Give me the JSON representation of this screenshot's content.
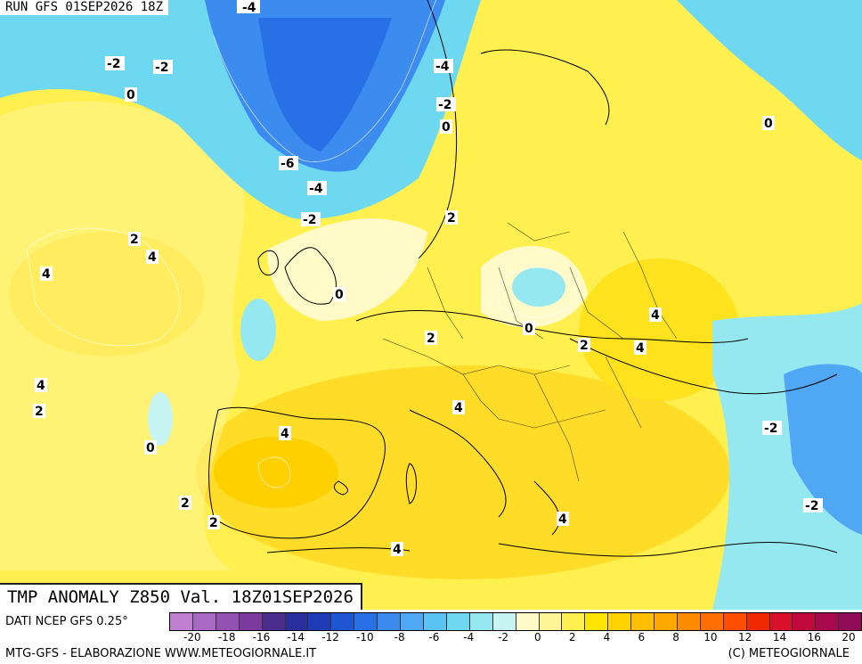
{
  "run_label": "RUN GFS 01SEP2026 18Z",
  "title": "TMP ANOMALY Z850 Val. 18Z01SEP2026",
  "footer": {
    "dati": "DATI NCEP GFS 0.25°",
    "credit": "MTG-GFS - ELABORAZIONE WWW.METEOGIORNALE.IT",
    "copyright": "(C) METEOGIORNALE"
  },
  "legend": {
    "colors": [
      "#c07fd0",
      "#a968c4",
      "#9250b0",
      "#7a3b9c",
      "#4a2c8c",
      "#2a2f9e",
      "#1e3cb8",
      "#1e55d2",
      "#2870e6",
      "#3c8cf0",
      "#50a8f4",
      "#5ac3f4",
      "#6ed8f0",
      "#96e8f0",
      "#c8f4f4",
      "#fffac8",
      "#fff596",
      "#fff050",
      "#ffe600",
      "#ffd200",
      "#ffbe00",
      "#ffa800",
      "#ff8c00",
      "#ff6e00",
      "#ff4c00",
      "#f02800",
      "#d8102a",
      "#c00a3c",
      "#a8084c",
      "#900c58"
    ],
    "ticks": [
      "-20",
      "-18",
      "-16",
      "-14",
      "-12",
      "-10",
      "-8",
      "-6",
      "-4",
      "-2",
      "0",
      "2",
      "4",
      "6",
      "8",
      "10",
      "12",
      "14",
      "16",
      "20"
    ]
  },
  "map_labels": [
    "-4",
    "-2",
    "-2",
    "0",
    "-4",
    "-2",
    "0",
    "0",
    "-6",
    "-4",
    "-2",
    "2",
    "2",
    "4",
    "4",
    "0",
    "2",
    "0",
    "2",
    "4",
    "4",
    "4",
    "2",
    "4",
    "0",
    "4",
    "-2",
    "2",
    "2",
    "-2",
    "4",
    "4"
  ]
}
